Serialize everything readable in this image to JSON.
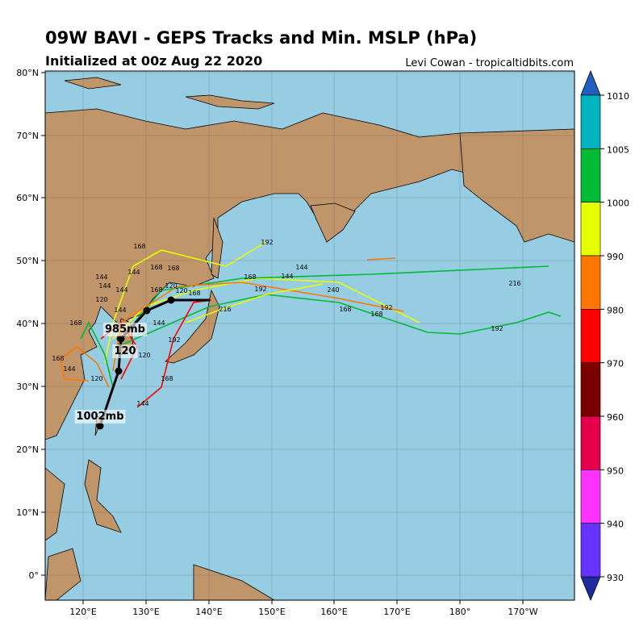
{
  "header": {
    "title": "09W BAVI - GEPS Tracks and Min. MSLP (hPa)",
    "subtitle": "Initialized at 00z Aug 22 2020",
    "credit": "Levi Cowan - tropicaltidbits.com"
  },
  "lon_ticks": [
    "120°E",
    "130°E",
    "140°E",
    "150°E",
    "160°E",
    "170°E",
    "180°",
    "170°W"
  ],
  "lat_ticks": [
    "80°N",
    "70°N",
    "60°N",
    "50°N",
    "40°N",
    "30°N",
    "20°N",
    "10°N",
    "0°"
  ],
  "colorbar_ticks": [
    1010,
    1005,
    1000,
    990,
    980,
    970,
    960,
    950,
    940,
    930
  ],
  "annotations": [
    "985mb",
    "120",
    "1002mb"
  ],
  "track_labels": [
    "168",
    "168",
    "168",
    "144",
    "144",
    "144",
    "144",
    "120",
    "120",
    "168",
    "168",
    "120",
    "144",
    "144",
    "216",
    "192",
    "144",
    "144",
    "168",
    "192",
    "240",
    "168",
    "192",
    "168",
    "216",
    "192",
    "192",
    "168",
    "168",
    "144",
    "120",
    "168",
    "120",
    "144"
  ]
}
